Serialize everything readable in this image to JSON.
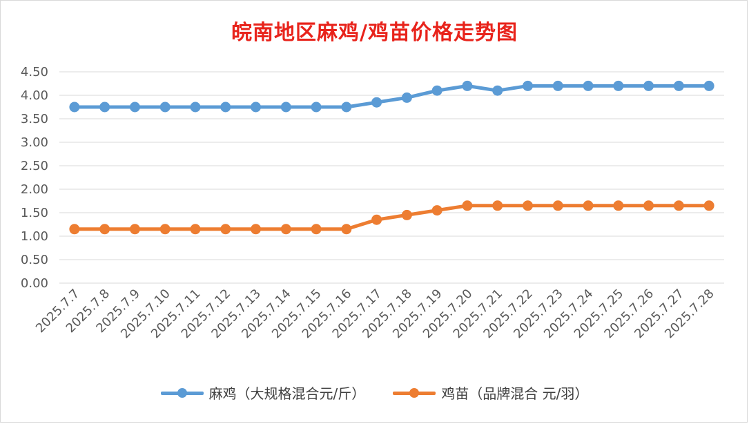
{
  "chart_data": {
    "type": "line",
    "title": "皖南地区麻鸡/鸡苗价格走势图",
    "categories": [
      "2025.7.7",
      "2025.7.8",
      "2025.7.9",
      "2025.7.10",
      "2025.7.11",
      "2025.7.12",
      "2025.7.13",
      "2025.7.14",
      "2025.7.15",
      "2025.7.16",
      "2025.7.17",
      "2025.7.18",
      "2025.7.19",
      "2025.7.20",
      "2025.7.21",
      "2025.7.22",
      "2025.7.23",
      "2025.7.24",
      "2025.7.25",
      "2025.7.26",
      "2025.7.27",
      "2025.7.28"
    ],
    "yticks": [
      "0.00",
      "0.50",
      "1.00",
      "1.50",
      "2.00",
      "2.50",
      "3.00",
      "3.50",
      "4.00",
      "4.50"
    ],
    "ylim": [
      0,
      4.5
    ],
    "grid": true,
    "legend_position": "bottom",
    "series": [
      {
        "name": "麻鸡（大规格混合元/斤）",
        "color": "#5b9bd5",
        "values": [
          3.75,
          3.75,
          3.75,
          3.75,
          3.75,
          3.75,
          3.75,
          3.75,
          3.75,
          3.75,
          3.85,
          3.95,
          4.1,
          4.2,
          4.1,
          4.2,
          4.2,
          4.2,
          4.2,
          4.2,
          4.2,
          4.2
        ]
      },
      {
        "name": "鸡苗（品牌混合 元/羽）",
        "color": "#ed7d31",
        "values": [
          1.15,
          1.15,
          1.15,
          1.15,
          1.15,
          1.15,
          1.15,
          1.15,
          1.15,
          1.15,
          1.35,
          1.45,
          1.55,
          1.65,
          1.65,
          1.65,
          1.65,
          1.65,
          1.65,
          1.65,
          1.65,
          1.65
        ]
      }
    ]
  }
}
